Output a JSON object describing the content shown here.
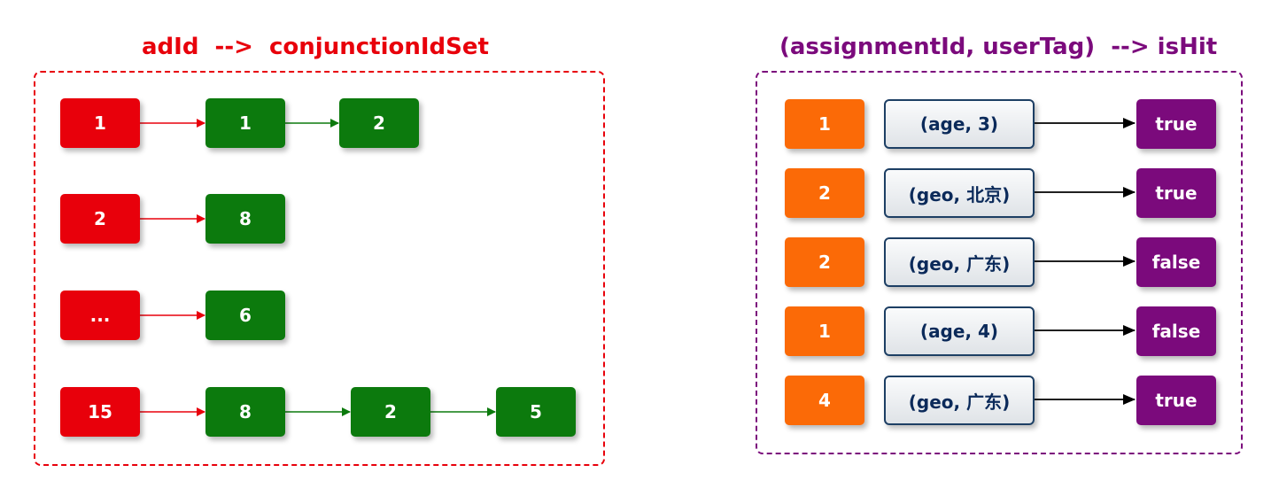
{
  "left": {
    "title": "adId  -->  conjunctionIdSet",
    "colors": {
      "frame": "#e8000b",
      "key": "#e8000b",
      "value": "#0c7a0d"
    },
    "rows": [
      {
        "key": "1",
        "values": [
          "1",
          "2"
        ]
      },
      {
        "key": "2",
        "values": [
          "8"
        ]
      },
      {
        "key": "...",
        "values": [
          "6"
        ]
      },
      {
        "key": "15",
        "values": [
          "8",
          "2",
          "5"
        ]
      }
    ]
  },
  "right": {
    "title": "(assignmentId, userTag)  --> isHit",
    "colors": {
      "frame": "#7b0a7c",
      "key": "#fb6a07",
      "result": "#7b0a7c"
    },
    "rows": [
      {
        "id": "1",
        "tag": "(age, 3)",
        "hit": "true"
      },
      {
        "id": "2",
        "tag": "(geo, 北京)",
        "hit": "true"
      },
      {
        "id": "2",
        "tag": "(geo, 广东)",
        "hit": "false"
      },
      {
        "id": "1",
        "tag": "(age, 4)",
        "hit": "false"
      },
      {
        "id": "4",
        "tag": "(geo, 广东)",
        "hit": "true"
      }
    ]
  }
}
